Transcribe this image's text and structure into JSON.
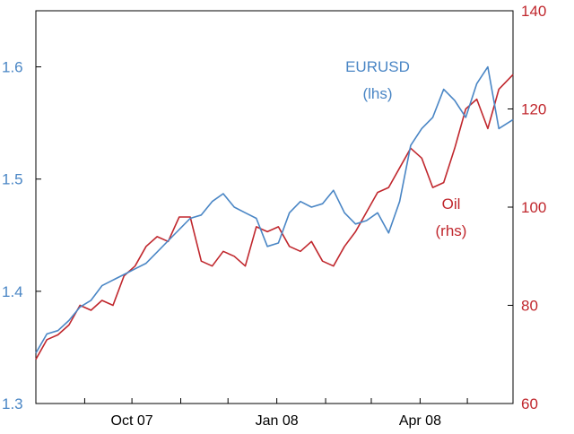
{
  "chart_data": {
    "type": "line",
    "title": "",
    "colors": {
      "eurusd": "#4a86c5",
      "oil": "#c0272d",
      "frame": "#000000"
    },
    "x_ticks": [
      "Oct 07",
      "Jan 08",
      "Apr 08"
    ],
    "x_domain": [
      "2007-08-01",
      "2008-05-30"
    ],
    "x_tick_dates": [
      "2007-10-01",
      "2008-01-01",
      "2008-04-01"
    ],
    "y_left": {
      "min": 1.3,
      "max": 1.65,
      "ticks": [
        "1.3",
        "1.4",
        "1.5",
        "1.6"
      ]
    },
    "y_right": {
      "min": 60,
      "max": 140,
      "ticks": [
        "60",
        "80",
        "100",
        "120",
        "140"
      ]
    },
    "labels": {
      "eurusd": [
        "EURUSD",
        "(lhs)"
      ],
      "oil": [
        "Oil",
        "(rhs)"
      ]
    },
    "series": [
      {
        "name": "EURUSD (lhs)",
        "axis": "left",
        "x": [
          "2007-08-01",
          "2007-08-08",
          "2007-08-15",
          "2007-08-22",
          "2007-08-29",
          "2007-09-05",
          "2007-09-12",
          "2007-09-19",
          "2007-09-26",
          "2007-10-03",
          "2007-10-10",
          "2007-10-17",
          "2007-10-24",
          "2007-10-31",
          "2007-11-07",
          "2007-11-14",
          "2007-11-21",
          "2007-11-28",
          "2007-12-05",
          "2007-12-12",
          "2007-12-19",
          "2007-12-26",
          "2008-01-02",
          "2008-01-09",
          "2008-01-16",
          "2008-01-23",
          "2008-01-30",
          "2008-02-06",
          "2008-02-13",
          "2008-02-20",
          "2008-02-27",
          "2008-03-05",
          "2008-03-12",
          "2008-03-19",
          "2008-03-26",
          "2008-04-02",
          "2008-04-09",
          "2008-04-16",
          "2008-04-23",
          "2008-04-30",
          "2008-05-07",
          "2008-05-14",
          "2008-05-21",
          "2008-05-30"
        ],
        "y": [
          1.345,
          1.362,
          1.365,
          1.374,
          1.386,
          1.392,
          1.405,
          1.41,
          1.415,
          1.42,
          1.425,
          1.435,
          1.445,
          1.455,
          1.465,
          1.468,
          1.48,
          1.487,
          1.475,
          1.47,
          1.465,
          1.44,
          1.443,
          1.47,
          1.48,
          1.475,
          1.478,
          1.49,
          1.47,
          1.46,
          1.463,
          1.47,
          1.452,
          1.48,
          1.53,
          1.545,
          1.555,
          1.58,
          1.57,
          1.555,
          1.585,
          1.6,
          1.545,
          1.553
        ]
      },
      {
        "name": "Oil (rhs)",
        "axis": "right",
        "x": [
          "2007-08-01",
          "2007-08-08",
          "2007-08-15",
          "2007-08-22",
          "2007-08-29",
          "2007-09-05",
          "2007-09-12",
          "2007-09-19",
          "2007-09-26",
          "2007-10-03",
          "2007-10-10",
          "2007-10-17",
          "2007-10-24",
          "2007-10-31",
          "2007-11-07",
          "2007-11-14",
          "2007-11-21",
          "2007-11-28",
          "2007-12-05",
          "2007-12-12",
          "2007-12-19",
          "2007-12-26",
          "2008-01-02",
          "2008-01-09",
          "2008-01-16",
          "2008-01-23",
          "2008-01-30",
          "2008-02-06",
          "2008-02-13",
          "2008-02-20",
          "2008-02-27",
          "2008-03-05",
          "2008-03-12",
          "2008-03-19",
          "2008-03-26",
          "2008-04-02",
          "2008-04-09",
          "2008-04-16",
          "2008-04-23",
          "2008-04-30",
          "2008-05-07",
          "2008-05-14",
          "2008-05-21",
          "2008-05-30"
        ],
        "y": [
          69,
          73,
          74,
          76,
          80,
          79,
          81,
          80,
          86,
          88,
          92,
          94,
          93,
          98,
          98,
          89,
          88,
          91,
          90,
          88,
          96,
          95,
          96,
          92,
          91,
          93,
          89,
          88,
          92,
          95,
          99,
          103,
          104,
          108,
          112,
          110,
          104,
          105,
          112,
          120,
          122,
          116,
          124,
          127
        ]
      }
    ]
  }
}
